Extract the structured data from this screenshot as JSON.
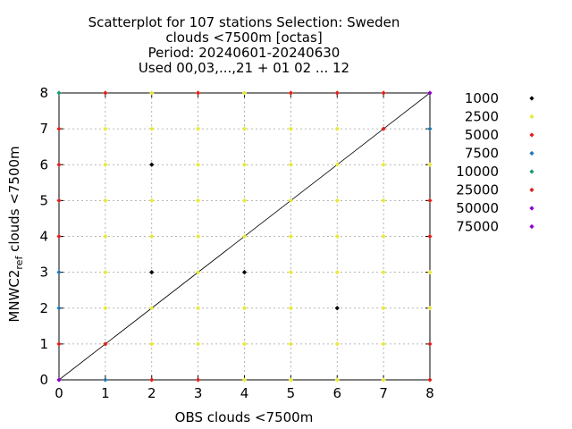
{
  "chart_data": {
    "type": "scatter",
    "title_lines": [
      "Scatterplot for  107 stations Selection: Sweden",
      "clouds <7500m [octas]",
      "Period: 20240601-20240630",
      "Used 00,03,...,21 + 01 02 ... 12"
    ],
    "xlabel": "OBS clouds <7500m",
    "ylabel": "MNWC2",
    "ylabel_sub": "ref",
    "ylabel_rest": " clouds <7500m",
    "xlim": [
      0,
      8
    ],
    "ylim": [
      0,
      8
    ],
    "xticks": [
      0,
      1,
      2,
      3,
      4,
      5,
      6,
      7,
      8
    ],
    "yticks": [
      0,
      1,
      2,
      3,
      4,
      5,
      6,
      7,
      8
    ],
    "grid": true,
    "diagonal": [
      [
        0,
        0
      ],
      [
        8,
        8
      ]
    ],
    "legend_position": "right",
    "series": [
      {
        "name": "1000",
        "color": "#000000",
        "points": [
          [
            2,
            6
          ],
          [
            2,
            3
          ],
          [
            4,
            3
          ],
          [
            6,
            2
          ]
        ]
      },
      {
        "name": "2500",
        "color": "#e8e83a",
        "points": [
          [
            1,
            8
          ],
          [
            2,
            8
          ],
          [
            3,
            8
          ],
          [
            4,
            8
          ],
          [
            5,
            8
          ],
          [
            6,
            8
          ],
          [
            7,
            8
          ],
          [
            1,
            7
          ],
          [
            2,
            7
          ],
          [
            3,
            7
          ],
          [
            4,
            7
          ],
          [
            5,
            7
          ],
          [
            6,
            7
          ],
          [
            8,
            7
          ],
          [
            1,
            6
          ],
          [
            3,
            6
          ],
          [
            4,
            6
          ],
          [
            5,
            6
          ],
          [
            6,
            6
          ],
          [
            7,
            6
          ],
          [
            8,
            6
          ],
          [
            1,
            5
          ],
          [
            2,
            5
          ],
          [
            3,
            5
          ],
          [
            4,
            5
          ],
          [
            5,
            5
          ],
          [
            6,
            5
          ],
          [
            7,
            5
          ],
          [
            8,
            5
          ],
          [
            1,
            4
          ],
          [
            2,
            4
          ],
          [
            3,
            4
          ],
          [
            4,
            4
          ],
          [
            5,
            4
          ],
          [
            6,
            4
          ],
          [
            7,
            4
          ],
          [
            1,
            3
          ],
          [
            3,
            3
          ],
          [
            5,
            3
          ],
          [
            6,
            3
          ],
          [
            7,
            3
          ],
          [
            8,
            3
          ],
          [
            1,
            2
          ],
          [
            2,
            2
          ],
          [
            3,
            2
          ],
          [
            4,
            2
          ],
          [
            5,
            2
          ],
          [
            7,
            2
          ],
          [
            8,
            2
          ],
          [
            1,
            1
          ],
          [
            2,
            1
          ],
          [
            3,
            1
          ],
          [
            4,
            1
          ],
          [
            5,
            1
          ],
          [
            6,
            1
          ],
          [
            7,
            1
          ],
          [
            4,
            0
          ],
          [
            5,
            0
          ],
          [
            6,
            0
          ],
          [
            7,
            0
          ]
        ]
      },
      {
        "name": "5000",
        "color": "#e02020",
        "points": [
          [
            1,
            8
          ],
          [
            3,
            8
          ],
          [
            5,
            8
          ],
          [
            6,
            8
          ],
          [
            7,
            8
          ],
          [
            0,
            7
          ],
          [
            7,
            7
          ],
          [
            0,
            6
          ],
          [
            0,
            5
          ],
          [
            8,
            5
          ],
          [
            0,
            4
          ],
          [
            8,
            4
          ],
          [
            0,
            1
          ],
          [
            8,
            1
          ],
          [
            1,
            1
          ],
          [
            2,
            0
          ],
          [
            3,
            0
          ],
          [
            8,
            0
          ]
        ]
      },
      {
        "name": "7500",
        "color": "#1f77b4",
        "points": [
          [
            8,
            7
          ],
          [
            0,
            3
          ],
          [
            0,
            2
          ],
          [
            1,
            0
          ]
        ]
      },
      {
        "name": "10000",
        "color": "#1a9e6a",
        "points": [
          [
            0,
            8
          ]
        ]
      },
      {
        "name": "25000",
        "color": "#e02020",
        "points": []
      },
      {
        "name": "50000",
        "color": "#8a00c8",
        "points": [
          [
            8,
            8
          ],
          [
            0,
            0
          ]
        ]
      },
      {
        "name": "75000",
        "color": "#8a00c8",
        "points": []
      }
    ]
  }
}
